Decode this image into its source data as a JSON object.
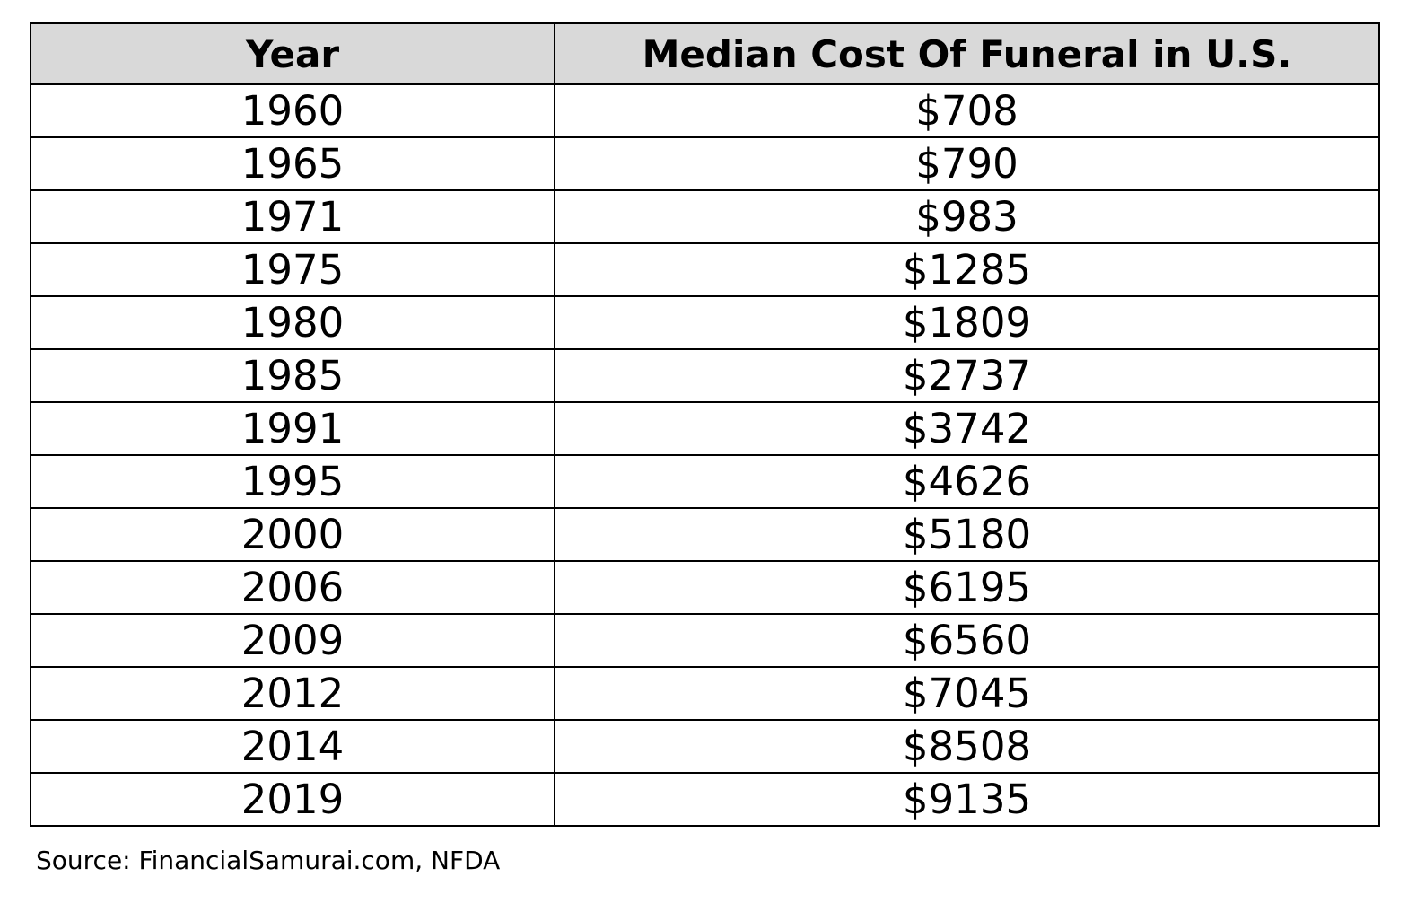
{
  "table": {
    "header": [
      "Year",
      "Median Cost Of Funeral in U.S."
    ],
    "rows": [
      [
        "1960",
        "$708"
      ],
      [
        "1965",
        "$790"
      ],
      [
        "1971",
        "$983"
      ],
      [
        "1975",
        "$1285"
      ],
      [
        "1980",
        "$1809"
      ],
      [
        "1985",
        "$2737"
      ],
      [
        "1991",
        "$3742"
      ],
      [
        "1995",
        "$4626"
      ],
      [
        "2000",
        "$5180"
      ],
      [
        "2006",
        "$6195"
      ],
      [
        "2009",
        "$6560"
      ],
      [
        "2012",
        "$7045"
      ],
      [
        "2014",
        "$8508"
      ],
      [
        "2019",
        "$9135"
      ]
    ]
  },
  "source": "Source: FinancialSamurai.com, NFDA"
}
